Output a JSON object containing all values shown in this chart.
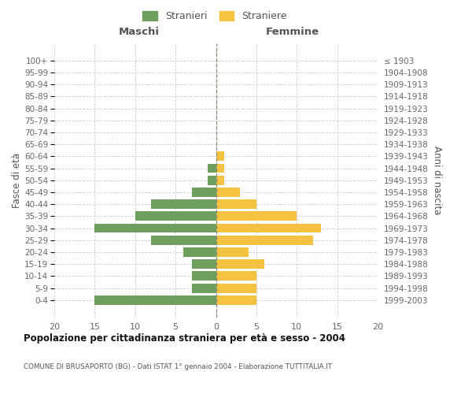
{
  "age_groups": [
    "100+",
    "95-99",
    "90-94",
    "85-89",
    "80-84",
    "75-79",
    "70-74",
    "65-69",
    "60-64",
    "55-59",
    "50-54",
    "45-49",
    "40-44",
    "35-39",
    "30-34",
    "25-29",
    "20-24",
    "15-19",
    "10-14",
    "5-9",
    "0-4"
  ],
  "birth_years": [
    "≤ 1903",
    "1904-1908",
    "1909-1913",
    "1914-1918",
    "1919-1923",
    "1924-1928",
    "1929-1933",
    "1934-1938",
    "1939-1943",
    "1944-1948",
    "1949-1953",
    "1954-1958",
    "1959-1963",
    "1964-1968",
    "1969-1973",
    "1974-1978",
    "1979-1983",
    "1984-1988",
    "1989-1993",
    "1994-1998",
    "1999-2003"
  ],
  "maschi": [
    0,
    0,
    0,
    0,
    0,
    0,
    0,
    0,
    0,
    1,
    1,
    3,
    8,
    10,
    15,
    8,
    4,
    3,
    3,
    3,
    15
  ],
  "femmine": [
    0,
    0,
    0,
    0,
    0,
    0,
    0,
    0,
    1,
    1,
    1,
    3,
    5,
    10,
    13,
    12,
    4,
    6,
    5,
    5,
    5
  ],
  "maschi_color": "#6d9f5e",
  "femmine_color": "#f5c242",
  "title": "Popolazione per cittadinanza straniera per età e sesso - 2004",
  "subtitle": "COMUNE DI BRUSAPORTO (BG) - Dati ISTAT 1° gennaio 2004 - Elaborazione TUTTITALIA.IT",
  "ylabel_left": "Fasce di età",
  "ylabel_right": "Anni di nascita",
  "xlabel_left": "Maschi",
  "xlabel_right": "Femmine",
  "legend_maschi": "Stranieri",
  "legend_femmine": "Straniere",
  "xlim": 20,
  "background_color": "#ffffff",
  "grid_color": "#cccccc"
}
